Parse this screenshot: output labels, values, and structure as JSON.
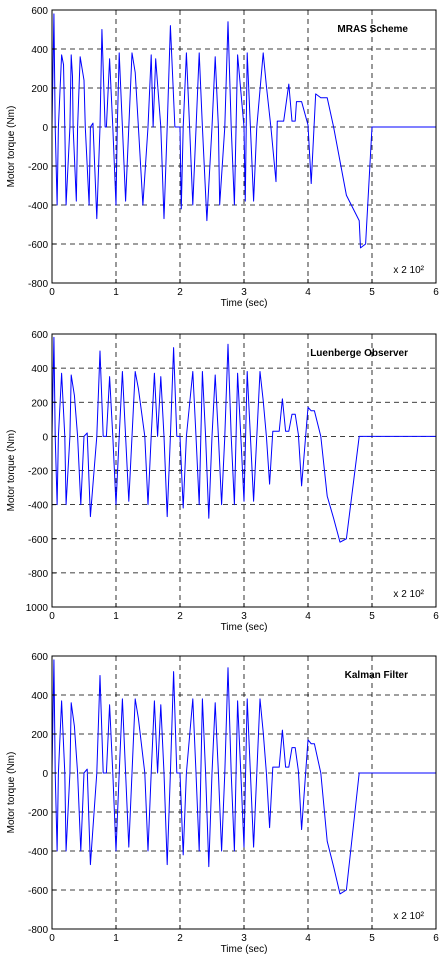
{
  "chart_data": [
    {
      "type": "line",
      "title": "MRAS Scheme",
      "xlabel": "Time (sec)",
      "ylabel": "Motor torque (Nm)",
      "scale_note": "x 2 10²",
      "xlim": [
        0,
        6
      ],
      "ylim": [
        -800,
        600
      ],
      "xticks": [
        "0",
        "1",
        "2",
        "3",
        "4",
        "5",
        "6"
      ],
      "yticks": [
        "600",
        "400",
        "200",
        "0",
        "-200",
        "-400",
        "-600",
        "-800"
      ],
      "grid": true,
      "series_color": "#0000ff",
      "series": [
        {
          "x": [
            0,
            0.03,
            0.05,
            0.08,
            0.1,
            0.15,
            0.18,
            0.2,
            0.22,
            0.28,
            0.3,
            0.32,
            0.33,
            0.38,
            0.4,
            0.44,
            0.5,
            0.52,
            0.58,
            0.6,
            0.64,
            0.7,
            0.75,
            0.78,
            0.83,
            0.85,
            0.9,
            0.95,
            1.0,
            1.02,
            1.05,
            1.1,
            1.15,
            1.2,
            1.25,
            1.3,
            1.35,
            1.42,
            1.5,
            1.55,
            1.58,
            1.62,
            1.7,
            1.75,
            1.8,
            1.85,
            1.92,
            2.0,
            2.02,
            2.05,
            2.1,
            2.15,
            2.2,
            2.3,
            2.35,
            2.42,
            2.5,
            2.55,
            2.6,
            2.62,
            2.7,
            2.75,
            2.8,
            2.85,
            2.9,
            3.0,
            3.02,
            3.05,
            3.1,
            3.15,
            3.2,
            3.3,
            3.35,
            3.42,
            3.5,
            3.52,
            3.58,
            3.62,
            3.7,
            3.75,
            3.8,
            3.82,
            3.9,
            4.0,
            4.05,
            4.12,
            4.2,
            4.3,
            4.4,
            4.6,
            4.8,
            4.82,
            4.9,
            5.0,
            5.05,
            5.1,
            5.2,
            5.3,
            5.4,
            5.5,
            5.6,
            5.62,
            5.68,
            5.72,
            5.75,
            5.8,
            5.85,
            5.9,
            6.0
          ],
          "y": [
            0,
            580,
            0,
            -400,
            0,
            370,
            320,
            0,
            -400,
            0,
            370,
            260,
            0,
            -380,
            0,
            360,
            240,
            0,
            -400,
            0,
            20,
            -470,
            0,
            500,
            0,
            0,
            350,
            0,
            -400,
            0,
            380,
            0,
            -380,
            0,
            380,
            280,
            0,
            -400,
            0,
            370,
            0,
            350,
            0,
            -470,
            0,
            520,
            0,
            0,
            -420,
            0,
            380,
            0,
            -400,
            380,
            0,
            -480,
            0,
            360,
            0,
            -400,
            0,
            540,
            0,
            -400,
            370,
            0,
            -380,
            380,
            0,
            -380,
            0,
            380,
            210,
            0,
            -280,
            30,
            30,
            30,
            220,
            30,
            30,
            130,
            130,
            10,
            -290,
            170,
            150,
            150,
            0,
            -350,
            -480,
            -620,
            -600,
            0,
            0,
            0,
            0,
            0,
            0,
            0,
            0,
            0,
            0,
            0,
            0,
            0,
            0,
            0,
            0
          ]
        }
      ]
    },
    {
      "type": "line",
      "title": "Luenberge Observer",
      "xlabel": "Time (sec)",
      "ylabel": "Motor torque (Nm)",
      "scale_note": "x 2 10²",
      "xlim": [
        0,
        6
      ],
      "ylim": [
        -1000,
        600
      ],
      "xticks": [
        "0",
        "1",
        "2",
        "3",
        "4",
        "5",
        "6"
      ],
      "yticks": [
        "600",
        "400",
        "200",
        "0",
        "-200",
        "-400",
        "-600",
        "-800",
        "1000"
      ],
      "grid": true,
      "series_color": "#0000ff",
      "series": [
        {
          "x": [
            0,
            0.03,
            0.05,
            0.08,
            0.1,
            0.15,
            0.2,
            0.22,
            0.28,
            0.3,
            0.35,
            0.4,
            0.45,
            0.5,
            0.55,
            0.6,
            0.7,
            0.75,
            0.8,
            0.85,
            0.9,
            0.95,
            1.0,
            1.05,
            1.1,
            1.15,
            1.2,
            1.25,
            1.3,
            1.35,
            1.45,
            1.5,
            1.55,
            1.6,
            1.65,
            1.7,
            1.75,
            1.8,
            1.85,
            1.9,
            1.95,
            2.0,
            2.05,
            2.1,
            2.2,
            2.25,
            2.3,
            2.35,
            2.4,
            2.45,
            2.5,
            2.55,
            2.6,
            2.65,
            2.7,
            2.75,
            2.8,
            2.85,
            2.9,
            2.95,
            3.0,
            3.05,
            3.1,
            3.15,
            3.2,
            3.25,
            3.3,
            3.35,
            3.4,
            3.45,
            3.5,
            3.55,
            3.6,
            3.65,
            3.7,
            3.75,
            3.8,
            3.85,
            3.9,
            4.0,
            4.05,
            4.1,
            4.2,
            4.3,
            4.4,
            4.5,
            4.6,
            4.8,
            4.85,
            4.9,
            5.0,
            5.05,
            5.1,
            5.2,
            5.3,
            5.4,
            5.5,
            5.6,
            5.62,
            5.68,
            5.7,
            5.75,
            5.78,
            5.8,
            5.85,
            5.9,
            6.0
          ],
          "y": [
            0,
            580,
            0,
            -400,
            0,
            370,
            0,
            -400,
            0,
            360,
            240,
            0,
            -400,
            0,
            20,
            -470,
            0,
            500,
            0,
            0,
            350,
            0,
            -400,
            0,
            380,
            0,
            -380,
            0,
            380,
            280,
            0,
            -400,
            0,
            370,
            0,
            350,
            0,
            -470,
            0,
            520,
            0,
            0,
            -420,
            0,
            380,
            0,
            -400,
            380,
            0,
            -480,
            0,
            360,
            0,
            -400,
            0,
            540,
            0,
            -400,
            370,
            0,
            -380,
            380,
            0,
            -380,
            0,
            380,
            210,
            0,
            -280,
            30,
            30,
            30,
            220,
            30,
            30,
            130,
            130,
            10,
            -290,
            170,
            150,
            150,
            0,
            -350,
            -480,
            -620,
            -600,
            0,
            0,
            0,
            0,
            0,
            0,
            0,
            0,
            0,
            0,
            0,
            0,
            0,
            0,
            0,
            0,
            0,
            0,
            0,
            0
          ]
        }
      ]
    },
    {
      "type": "line",
      "title": "Kalman Filter",
      "xlabel": "Time (sec)",
      "ylabel": "Motor torque (Nm)",
      "scale_note": "x 2 10²",
      "xlim": [
        0,
        6
      ],
      "ylim": [
        -800,
        600
      ],
      "xticks": [
        "0",
        "1",
        "2",
        "3",
        "4",
        "5",
        "6"
      ],
      "yticks": [
        "600",
        "400",
        "200",
        "0",
        "-200",
        "-400",
        "-600",
        "-800"
      ],
      "grid": true,
      "series_color": "#0000ff",
      "series": [
        {
          "x": [
            0,
            0.03,
            0.05,
            0.08,
            0.1,
            0.15,
            0.2,
            0.22,
            0.28,
            0.3,
            0.35,
            0.4,
            0.45,
            0.5,
            0.55,
            0.6,
            0.7,
            0.75,
            0.8,
            0.85,
            0.9,
            0.95,
            1.0,
            1.05,
            1.1,
            1.15,
            1.2,
            1.25,
            1.3,
            1.35,
            1.45,
            1.5,
            1.55,
            1.6,
            1.65,
            1.7,
            1.75,
            1.8,
            1.85,
            1.9,
            1.95,
            2.0,
            2.05,
            2.1,
            2.2,
            2.25,
            2.3,
            2.35,
            2.4,
            2.45,
            2.5,
            2.55,
            2.6,
            2.65,
            2.7,
            2.75,
            2.8,
            2.85,
            2.9,
            2.95,
            3.0,
            3.05,
            3.1,
            3.15,
            3.2,
            3.25,
            3.3,
            3.35,
            3.4,
            3.45,
            3.5,
            3.55,
            3.6,
            3.65,
            3.7,
            3.75,
            3.8,
            3.85,
            3.9,
            4.0,
            4.05,
            4.1,
            4.2,
            4.3,
            4.4,
            4.5,
            4.6,
            4.8,
            4.85,
            4.9,
            5.0,
            5.05,
            5.1,
            5.2,
            5.3,
            5.4,
            5.5,
            5.6,
            5.62,
            5.68,
            5.7,
            5.75,
            5.78,
            5.8,
            5.85,
            5.9,
            6.0
          ],
          "y": [
            0,
            580,
            0,
            -400,
            0,
            370,
            0,
            -400,
            0,
            360,
            240,
            0,
            -400,
            0,
            20,
            -470,
            0,
            500,
            0,
            0,
            350,
            0,
            -400,
            0,
            380,
            0,
            -380,
            0,
            380,
            280,
            0,
            -400,
            0,
            370,
            0,
            350,
            0,
            -470,
            0,
            520,
            0,
            0,
            -420,
            0,
            380,
            0,
            -400,
            380,
            0,
            -480,
            0,
            360,
            0,
            -400,
            0,
            540,
            0,
            -400,
            370,
            0,
            -380,
            380,
            0,
            -380,
            0,
            380,
            210,
            0,
            -280,
            30,
            30,
            30,
            220,
            30,
            30,
            130,
            130,
            10,
            -290,
            170,
            150,
            150,
            0,
            -350,
            -480,
            -620,
            -600,
            0,
            0,
            0,
            0,
            0,
            0,
            0,
            0,
            0,
            0,
            0,
            0,
            0,
            0,
            0,
            0,
            0,
            0,
            0,
            0
          ]
        }
      ]
    }
  ]
}
